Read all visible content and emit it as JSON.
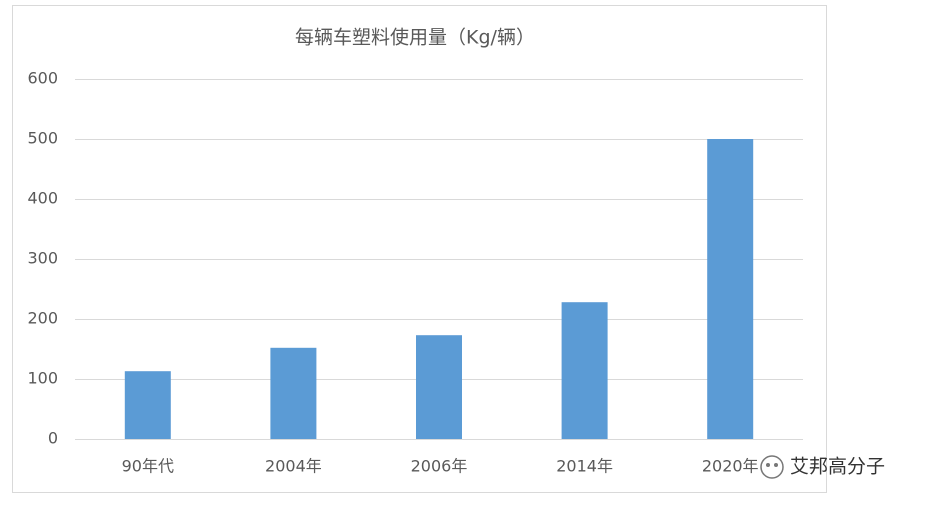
{
  "chart_data": {
    "type": "bar",
    "title": "每辆车塑料使用量（Kg/辆）",
    "categories": [
      "90年代",
      "2004年",
      "2006年",
      "2014年",
      "2020年"
    ],
    "values": [
      113,
      152,
      173,
      228,
      500
    ],
    "color": "#5b9bd5",
    "ylim": [
      0,
      600
    ],
    "yticks": [
      0,
      100,
      200,
      300,
      400,
      500,
      600
    ],
    "grid": true
  },
  "watermark": "艾邦高分子"
}
